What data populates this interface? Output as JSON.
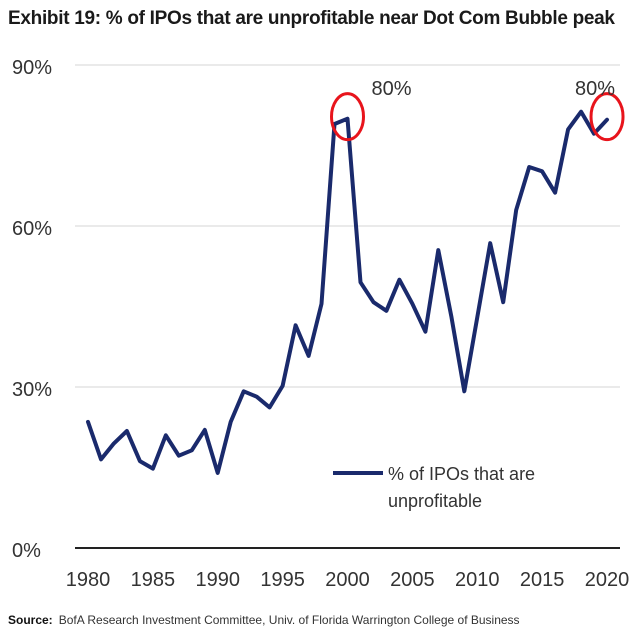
{
  "title": "Exhibit 19: % of IPOs that are unprofitable near Dot Com Bubble peak",
  "source_label": "Source:",
  "source_text": "BofA Research Investment Committee, Univ. of Florida Warrington College of Business",
  "colors": {
    "line": "#1a2a6c",
    "highlight": "#e8141c",
    "grid": "#d6d6d6",
    "axis": "#222222"
  },
  "chart_data": {
    "type": "line",
    "title": "Exhibit 19: % of IPOs that are unprofitable near Dot Com Bubble peak",
    "xlabel": "",
    "ylabel": "",
    "xlim": [
      1979,
      2021
    ],
    "ylim": [
      0,
      90
    ],
    "x_ticks": [
      1980,
      1985,
      1990,
      1995,
      2000,
      2005,
      2010,
      2015,
      2020
    ],
    "y_ticks": [
      0,
      30,
      60,
      90
    ],
    "y_tick_labels": [
      "0%",
      "30%",
      "60%",
      "90%"
    ],
    "grid": true,
    "legend_position": "lower-right",
    "series": [
      {
        "name": "% of IPOs that are unprofitable",
        "x": [
          1980,
          1981,
          1982,
          1983,
          1984,
          1985,
          1986,
          1987,
          1988,
          1989,
          1990,
          1991,
          1992,
          1993,
          1994,
          1995,
          1996,
          1997,
          1998,
          1999,
          2000,
          2001,
          2002,
          2003,
          2004,
          2005,
          2006,
          2007,
          2008,
          2009,
          2010,
          2011,
          2012,
          2013,
          2014,
          2015,
          2016,
          2017,
          2018,
          2019,
          2020
        ],
        "y": [
          23.5,
          16.5,
          19.5,
          21.8,
          16.2,
          14.8,
          21,
          17.2,
          18.2,
          22,
          14,
          23.5,
          29.2,
          28.2,
          26.2,
          30.2,
          41.5,
          35.8,
          45.5,
          79,
          80,
          49.5,
          45.8,
          44.2,
          50,
          45.5,
          40.3,
          55.5,
          43.2,
          29.2,
          43,
          56.8,
          45.8,
          63,
          71,
          70.2,
          66.2,
          78,
          81.3,
          77.2,
          79.8
        ]
      }
    ],
    "annotations": [
      {
        "text": "80%",
        "x": 2000,
        "y": 80
      },
      {
        "text": "80%",
        "x": 2020,
        "y": 80
      }
    ]
  }
}
